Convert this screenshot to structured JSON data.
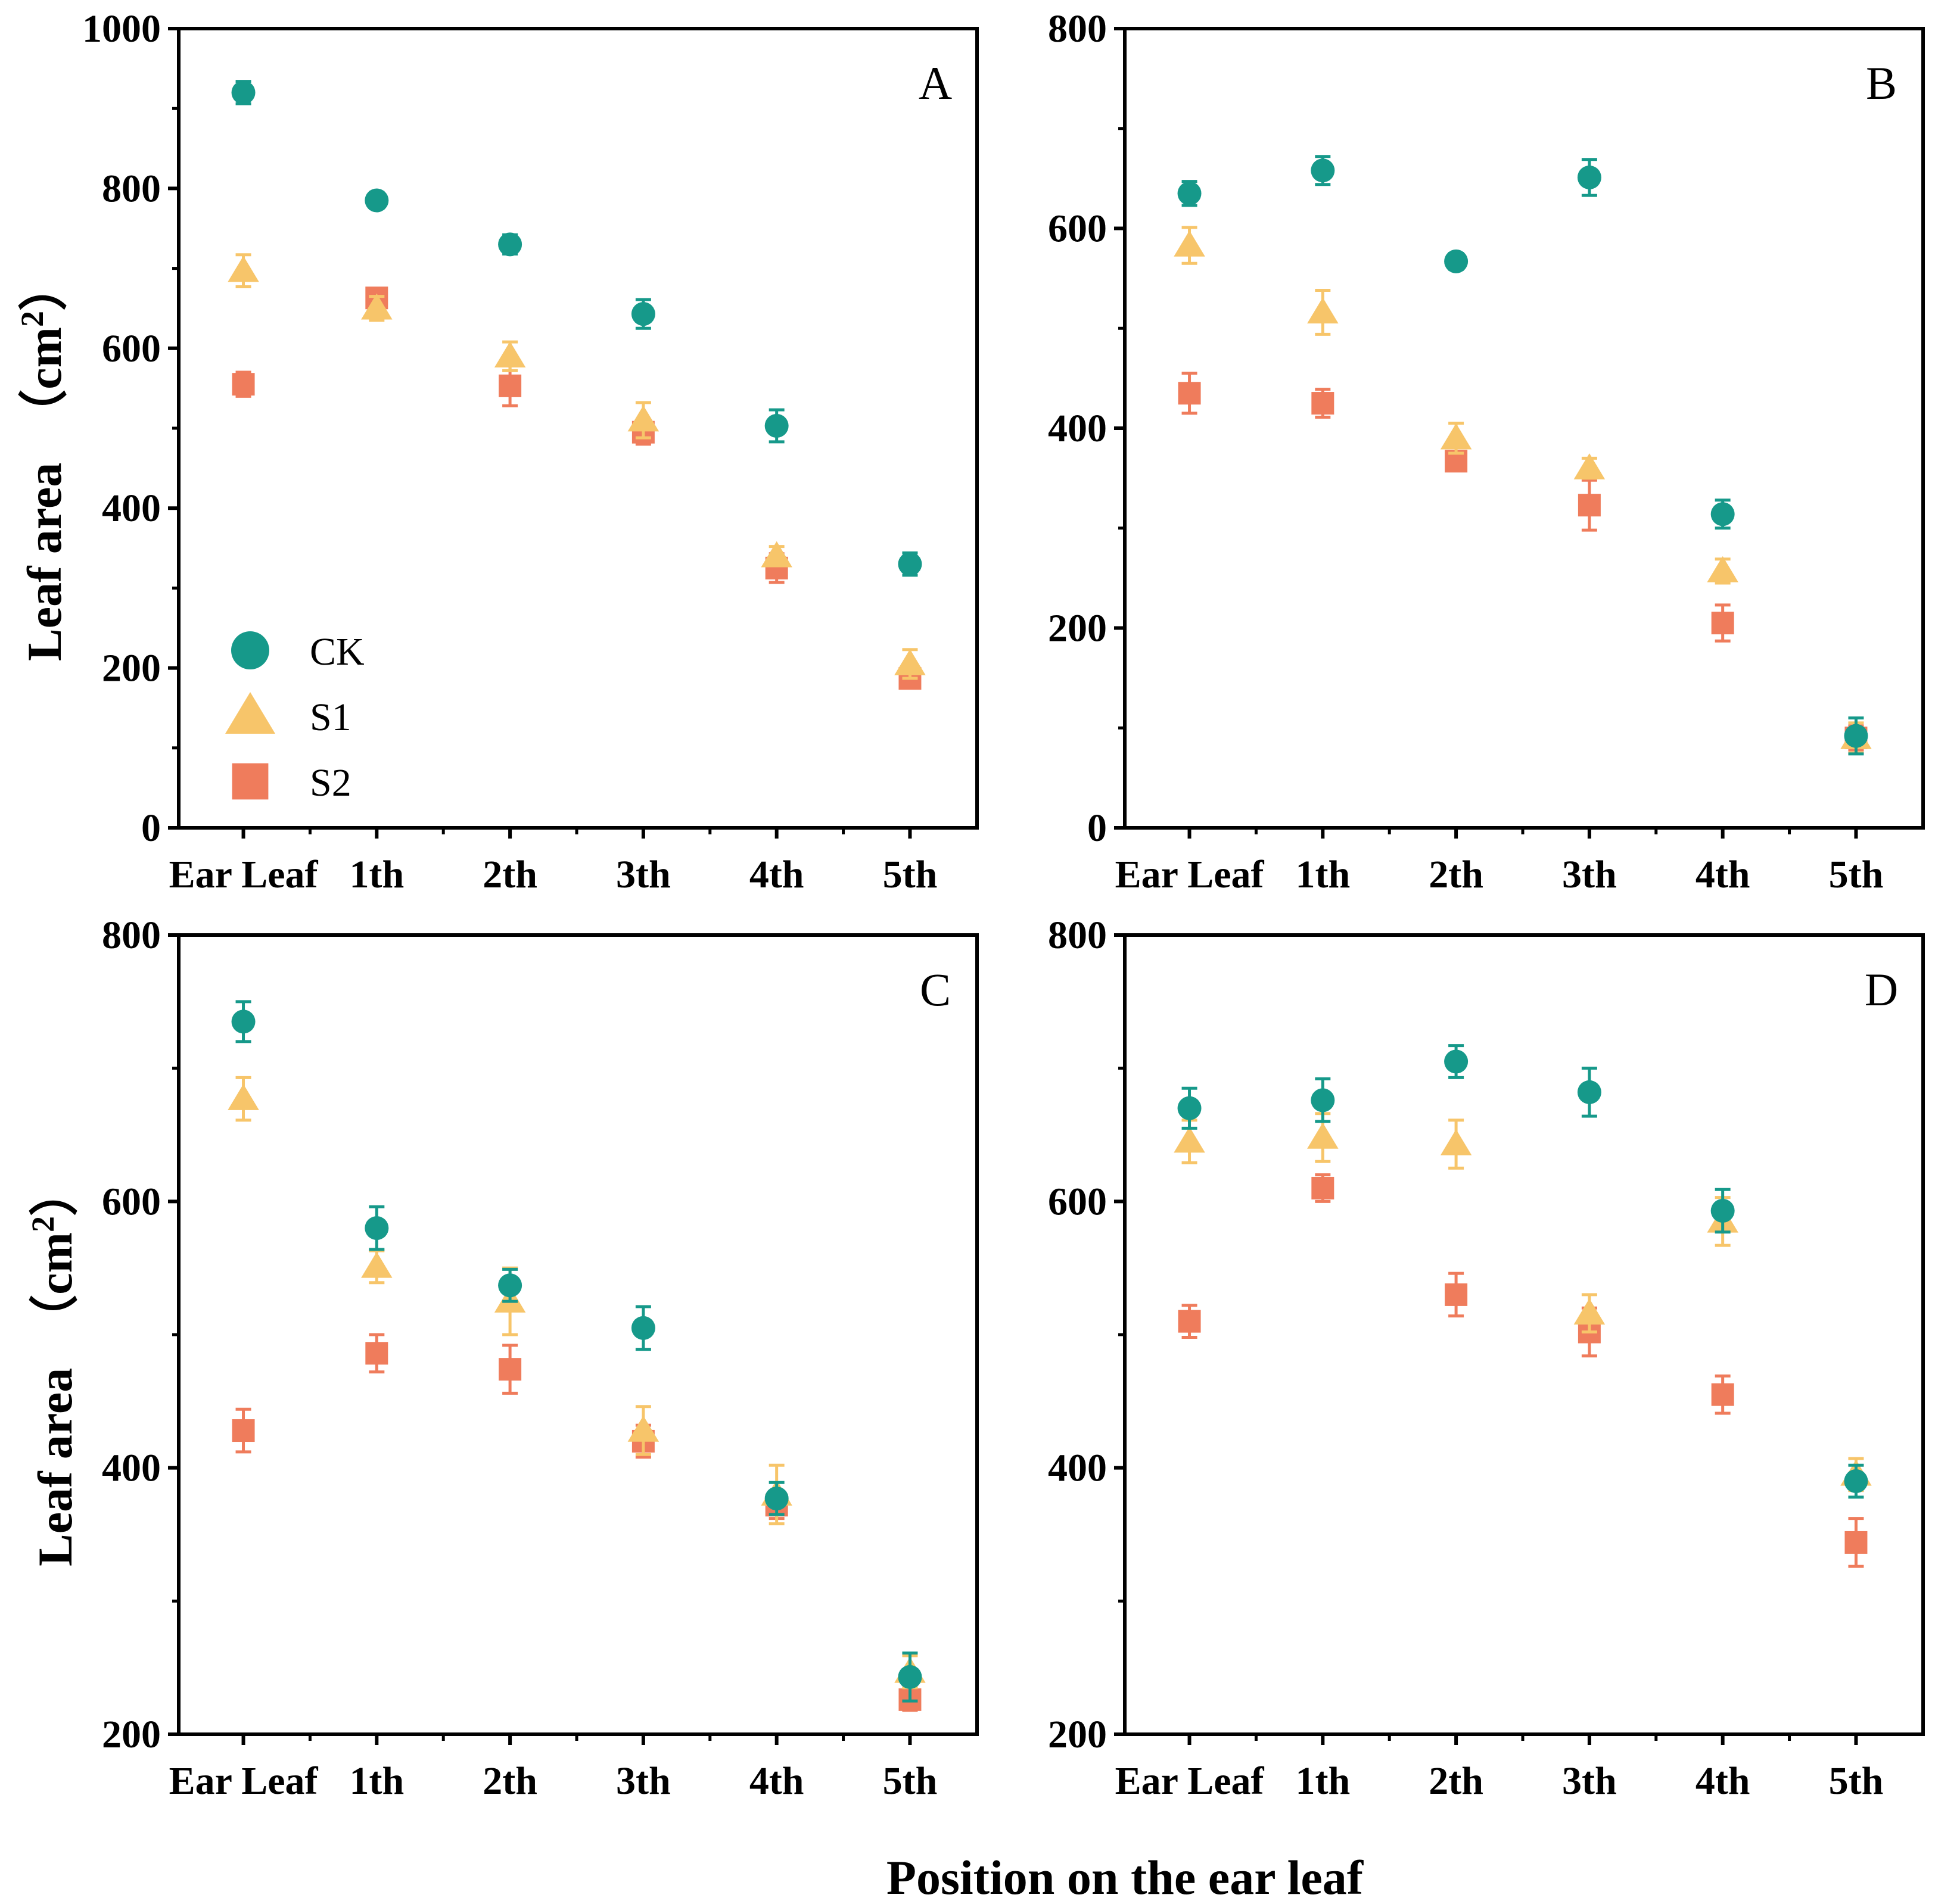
{
  "chart_data": {
    "xlabel": "Position on the ear leaf",
    "ylabel": "Leaf area　（cm",
    "ylabel_sup": "2",
    "ylabel_close": "）",
    "categories": [
      "Ear Leaf",
      "1th",
      "2th",
      "3th",
      "4th",
      "5th"
    ],
    "legend": {
      "placement": "bottom-left of panel A",
      "entries": [
        {
          "label": "CK",
          "marker": "circle",
          "color": "#16998a"
        },
        {
          "label": "S1",
          "marker": "triangle",
          "color": "#f7c56a"
        },
        {
          "label": "S2",
          "marker": "square",
          "color": "#ef7c5c"
        }
      ]
    },
    "panels": [
      {
        "id": "A",
        "label": "A",
        "type": "scatter",
        "ylim": [
          0,
          1000
        ],
        "yticks": [
          0,
          200,
          400,
          600,
          800,
          1000
        ],
        "yticklabels": [
          "0",
          "200",
          "400",
          "600",
          "800",
          "1000"
        ],
        "series": [
          {
            "name": "CK",
            "values": [
              920,
              785,
              730,
              643,
              503,
              330
            ],
            "errors": [
              14,
              10,
              12,
              18,
              20,
              14
            ]
          },
          {
            "name": "S1",
            "values": [
              697,
              650,
              590,
              510,
              340,
              205
            ],
            "errors": [
              20,
              15,
              18,
              22,
              12,
              18
            ]
          },
          {
            "name": "S2",
            "values": [
              555,
              663,
              553,
              495,
              325,
              187
            ],
            "errors": [
              15,
              12,
              25,
              15,
              18,
              12
            ]
          }
        ]
      },
      {
        "id": "B",
        "label": "B",
        "type": "scatter",
        "ylim": [
          0,
          800
        ],
        "yticks": [
          0,
          200,
          400,
          600,
          800
        ],
        "yticklabels": [
          "0",
          "200",
          "400",
          "600",
          "800"
        ],
        "series": [
          {
            "name": "CK",
            "values": [
              635,
              658,
              567,
              651,
              314,
              92
            ],
            "errors": [
              12,
              14,
              8,
              18,
              14,
              18
            ]
          },
          {
            "name": "S1",
            "values": [
              583,
              516,
              390,
              360,
              257,
              90
            ],
            "errors": [
              18,
              22,
              15,
              10,
              12,
              15
            ]
          },
          {
            "name": "S2",
            "values": [
              435,
              425,
              367,
              323,
              205,
              90
            ],
            "errors": [
              20,
              14,
              8,
              25,
              18,
              12
            ]
          }
        ]
      },
      {
        "id": "C",
        "label": "C",
        "type": "scatter",
        "ylim": [
          200,
          800
        ],
        "yticks": [
          200,
          400,
          600,
          800
        ],
        "yticklabels": [
          "200",
          "400",
          "600",
          "800"
        ],
        "series": [
          {
            "name": "CK",
            "values": [
              735,
              580,
              537,
              505,
              377,
              243
            ],
            "errors": [
              15,
              16,
              12,
              16,
              12,
              18
            ]
          },
          {
            "name": "S1",
            "values": [
              677,
              551,
              525,
              428,
              380,
              247
            ],
            "errors": [
              16,
              12,
              25,
              18,
              22,
              12
            ]
          },
          {
            "name": "S2",
            "values": [
              428,
              486,
              474,
              420,
              372,
              226
            ],
            "errors": [
              16,
              14,
              18,
              12,
              10,
              8
            ]
          }
        ]
      },
      {
        "id": "D",
        "label": "D",
        "type": "scatter",
        "ylim": [
          200,
          800
        ],
        "yticks": [
          200,
          400,
          600,
          800
        ],
        "yticklabels": [
          "200",
          "400",
          "600",
          "800"
        ],
        "series": [
          {
            "name": "CK",
            "values": [
              670,
              676,
              705,
              682,
              593,
              390
            ],
            "errors": [
              15,
              16,
              12,
              18,
              16,
              12
            ]
          },
          {
            "name": "S1",
            "values": [
              645,
              648,
              643,
              516,
              585,
              395
            ],
            "errors": [
              16,
              18,
              18,
              14,
              18,
              12
            ]
          },
          {
            "name": "S2",
            "values": [
              510,
              610,
              530,
              502,
              455,
              344
            ],
            "errors": [
              12,
              10,
              16,
              18,
              14,
              18
            ]
          }
        ]
      }
    ]
  }
}
